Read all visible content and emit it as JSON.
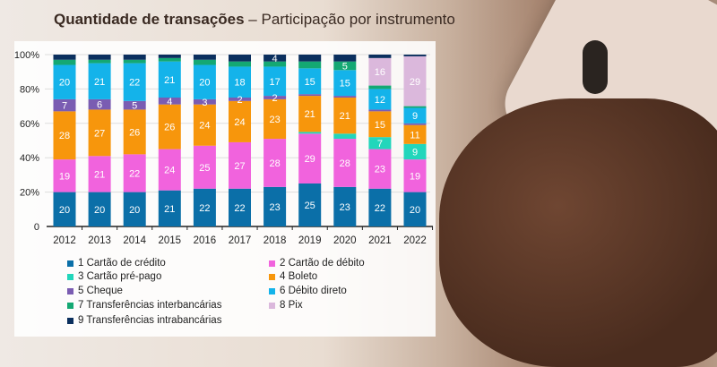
{
  "title": {
    "bold": "Quantidade de transações",
    "rest": " – Participação por instrumento"
  },
  "chart_data": {
    "type": "bar",
    "stacked": true,
    "title": "Quantidade de transações – Participação por instrumento",
    "categories": [
      "2012",
      "2013",
      "2014",
      "2015",
      "2016",
      "2017",
      "2018",
      "2019",
      "2020",
      "2021",
      "2022"
    ],
    "ylim": [
      0,
      100
    ],
    "yticks": [
      "0",
      "20%",
      "40%",
      "60%",
      "80%",
      "100%"
    ],
    "series": [
      {
        "name": "1 Cartão de crédito",
        "color": "#0b6fa8",
        "labeled": true,
        "values": [
          20,
          20,
          20,
          21,
          22,
          22,
          23,
          25,
          23,
          22,
          20
        ]
      },
      {
        "name": "2 Cartão de débito",
        "color": "#f163dd",
        "labeled": true,
        "values": [
          19,
          21,
          22,
          24,
          25,
          27,
          28,
          29,
          28,
          23,
          19
        ]
      },
      {
        "name": "3 Cartão pré-pago",
        "color": "#22d6bb",
        "labeled": [
          false,
          false,
          false,
          false,
          false,
          false,
          false,
          false,
          false,
          true,
          true
        ],
        "values": [
          0,
          0,
          0,
          0,
          0,
          0,
          0,
          1,
          3,
          7,
          9
        ]
      },
      {
        "name": "4 Boleto",
        "color": "#f7960c",
        "labeled": true,
        "values": [
          28,
          27,
          26,
          26,
          24,
          24,
          23,
          21,
          21,
          15,
          11
        ]
      },
      {
        "name": "5 Cheque",
        "color": "#7a5cb2",
        "labeled": [
          true,
          true,
          true,
          true,
          true,
          true,
          true,
          false,
          false,
          false,
          false
        ],
        "values": [
          7,
          6,
          5,
          4,
          3,
          2,
          2,
          1,
          1,
          1,
          1
        ]
      },
      {
        "name": "6 Débito direto",
        "color": "#14b3ea",
        "labeled": true,
        "values": [
          20,
          21,
          22,
          21,
          20,
          18,
          17,
          15,
          15,
          12,
          9
        ]
      },
      {
        "name": "7 Transferências interbancárias",
        "color": "#14a873",
        "labeled": [
          false,
          false,
          false,
          false,
          false,
          false,
          false,
          false,
          true,
          false,
          false
        ],
        "values": [
          3,
          2,
          2,
          2,
          3,
          3,
          3,
          4,
          5,
          2,
          1
        ]
      },
      {
        "name": "8 Pix",
        "color": "#dbb8dc",
        "labeled": [
          false,
          false,
          false,
          false,
          false,
          false,
          false,
          false,
          false,
          true,
          true
        ],
        "values": [
          0,
          0,
          0,
          0,
          0,
          0,
          0,
          0,
          0,
          16,
          29
        ]
      },
      {
        "name": "9 Transferências intrabancárias",
        "color": "#0b2f5e",
        "labeled": [
          false,
          false,
          false,
          false,
          false,
          false,
          true,
          false,
          false,
          false,
          false
        ],
        "values": [
          3,
          3,
          3,
          2,
          3,
          4,
          4,
          4,
          4,
          2,
          1
        ]
      }
    ]
  }
}
